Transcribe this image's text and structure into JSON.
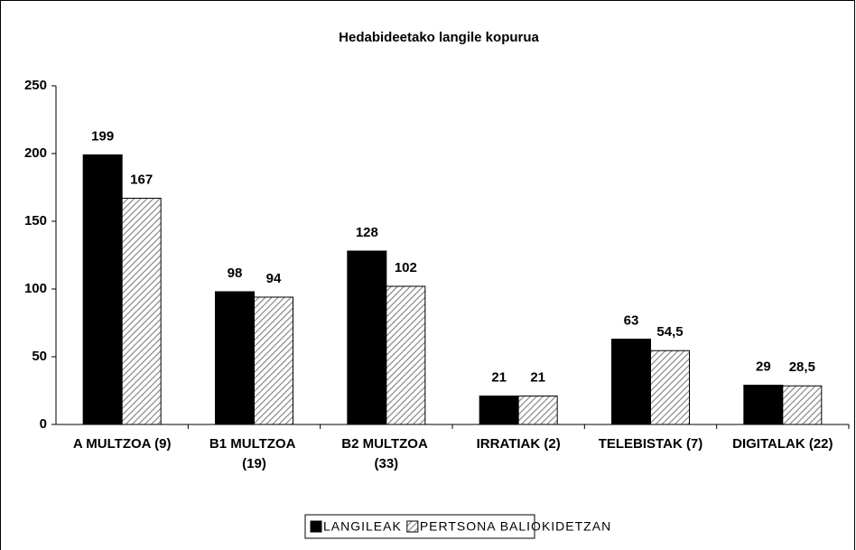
{
  "chart_data": {
    "type": "bar",
    "title": "Hedabideetako langile kopurua",
    "categories": [
      "A MULTZOA (9)",
      "B1 MULTZOA (19)",
      "B2 MULTZOA (33)",
      "IRRATIAK (2)",
      "TELEBISTAK (7)",
      "DIGITALAK (22)"
    ],
    "series": [
      {
        "name": "LANGILEAK",
        "color": "#000000",
        "values": [
          199,
          98,
          128,
          21,
          63,
          29
        ]
      },
      {
        "name": "PERTSONA BALIOKIDETZAN",
        "color": "#8c8c8c",
        "pattern": "hatch",
        "values": [
          167,
          94,
          102,
          21,
          54.5,
          28.5
        ],
        "value_labels": [
          "167",
          "94",
          "102",
          "21",
          "54,5",
          "28,5"
        ]
      }
    ],
    "ylim": [
      0,
      250
    ],
    "yticks": [
      0,
      50,
      100,
      150,
      200,
      250
    ],
    "legend": "bottom"
  }
}
